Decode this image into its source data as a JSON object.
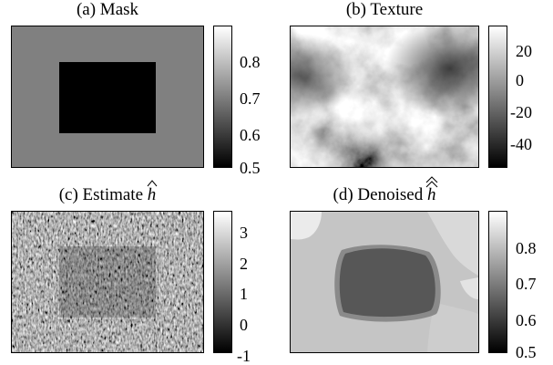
{
  "panels": [
    {
      "id": "a",
      "title": "(a) Mask",
      "colors": {
        "background": "#808080",
        "inner": "#000000"
      },
      "colorbar_ticks": [
        "0.8",
        "0.7",
        "0.6",
        "0.5"
      ]
    },
    {
      "id": "b",
      "title": "(b) Texture",
      "colors": {
        "light": "#f2f2f2",
        "dark": "#3a3a3a"
      },
      "colorbar_ticks": [
        "20",
        "0",
        "-20",
        "-40"
      ]
    },
    {
      "id": "c",
      "title_prefix": "(c) Estimate",
      "symbol": "h",
      "colors": {
        "base": "#4a4a4a"
      },
      "colorbar_ticks": [
        "3",
        "2",
        "1",
        "0",
        "-1"
      ]
    },
    {
      "id": "d",
      "title_prefix": "(d) Denoised",
      "symbol": "h",
      "colors": {
        "background": "#c8c8c8",
        "inner": "#585858"
      },
      "colorbar_ticks": [
        "0.8",
        "0.7",
        "0.6",
        "0.5"
      ]
    }
  ]
}
